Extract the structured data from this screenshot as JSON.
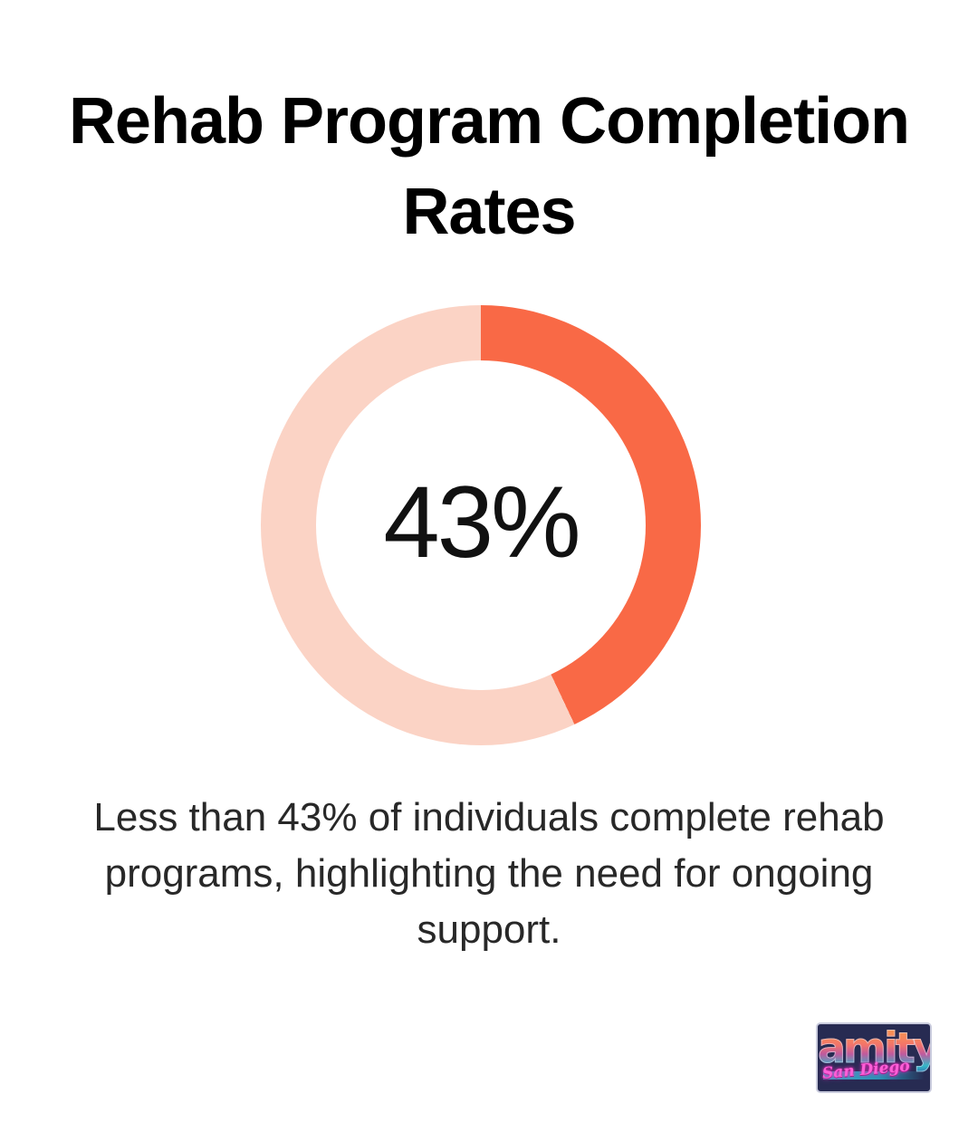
{
  "page": {
    "background_color": "#ffffff"
  },
  "header": {
    "title": "Rehab Program Completion Rates",
    "title_lines": [
      "Rehab Program Completion",
      "Rates"
    ],
    "title_color": "#000000"
  },
  "chart_data": {
    "type": "pie",
    "subtype": "donut",
    "title": "Rehab Program Completion Rates",
    "center_label": "43%",
    "center_label_color": "#111111",
    "hole_color": "#ffffff",
    "start_angle_deg": 0,
    "direction": "clockwise",
    "legend": "none",
    "slices": [
      {
        "value": 43,
        "color": "#F96946"
      },
      {
        "value": 57,
        "color": "#FBD3C5"
      }
    ]
  },
  "caption": {
    "text": "Less than 43% of individuals complete rehab programs, highlighting the need for ongoing support.",
    "lines": [
      "Less than 43% of individuals complete rehab",
      "programs, highlighting the need for ongoing",
      "support."
    ],
    "color": "#282828"
  },
  "logo": {
    "wordmark": "amity",
    "script": "San Diego",
    "background_color": "#272B52",
    "script_color": "#FF5FD8"
  }
}
